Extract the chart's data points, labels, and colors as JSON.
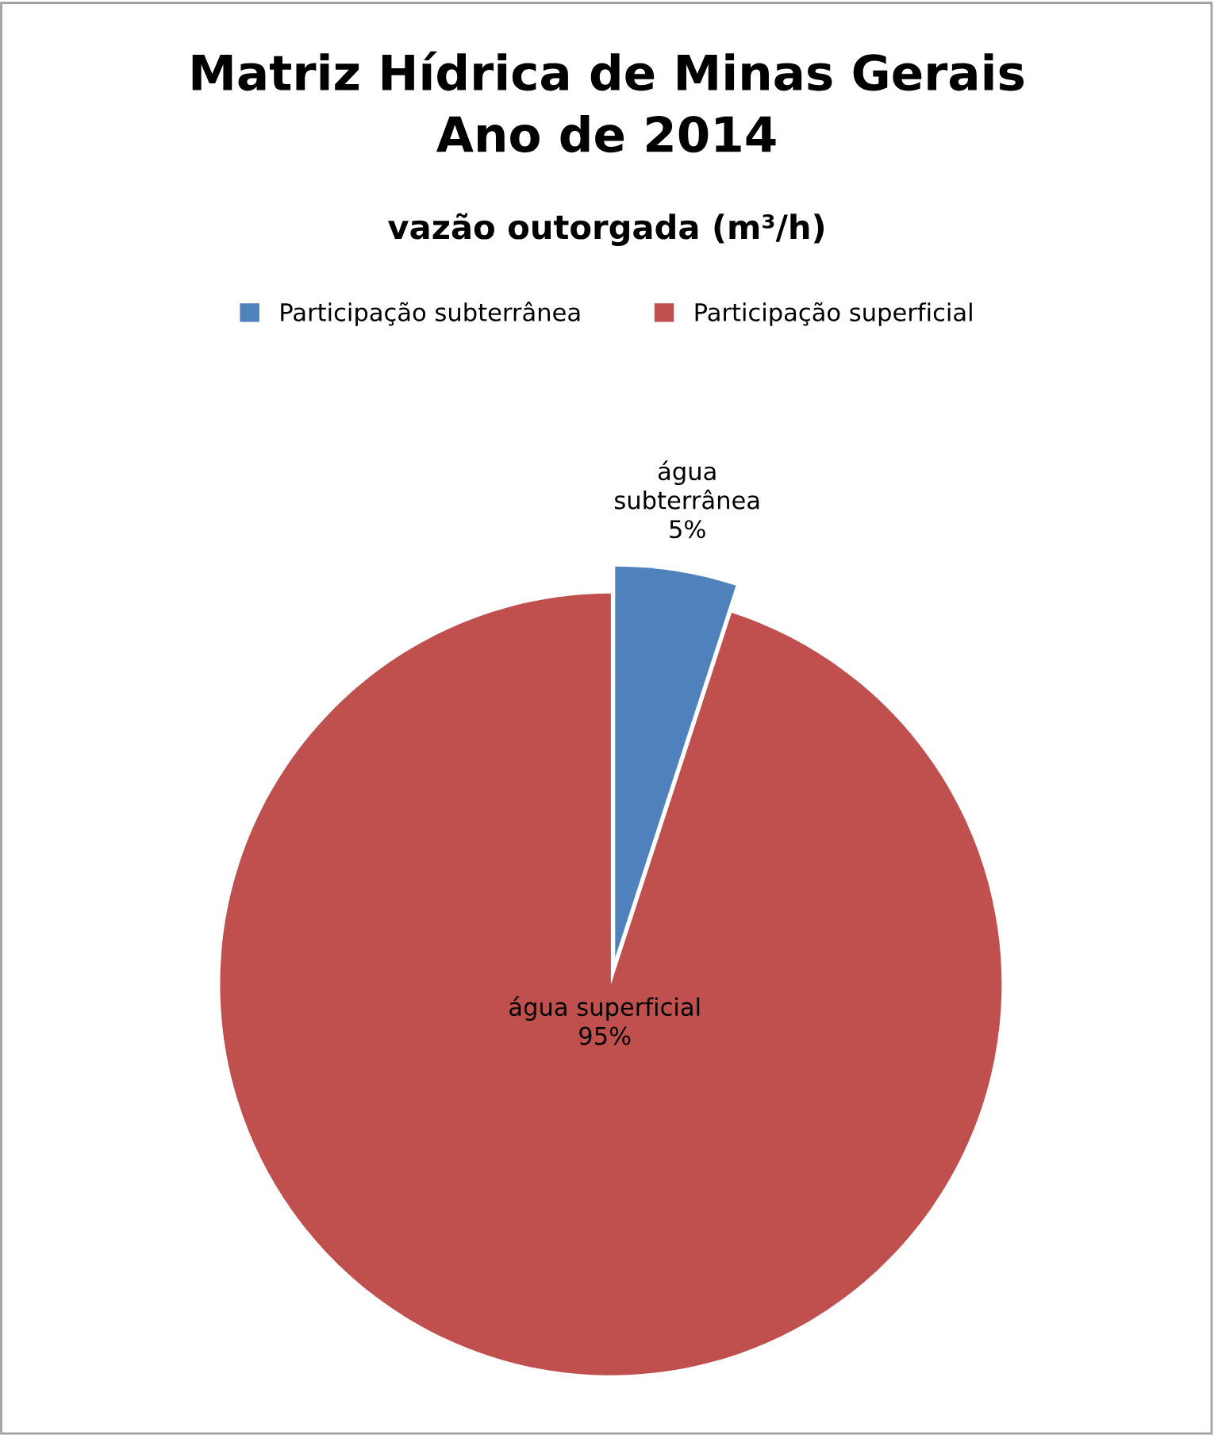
{
  "chart_data": {
    "type": "pie",
    "title": "Matriz Hídrica de Minas Gerais\nAno de 2014",
    "subtitle": "vazão outorgada (m³/h)",
    "categories": [
      "Participação subterrânea",
      "Participação superficial"
    ],
    "values": [
      5,
      95
    ],
    "colors": [
      "#4f81bd",
      "#c0504d"
    ],
    "value_labels": [
      "água\nsubterrânea\n5%",
      "água superficial\n95%"
    ],
    "legend": "top"
  }
}
